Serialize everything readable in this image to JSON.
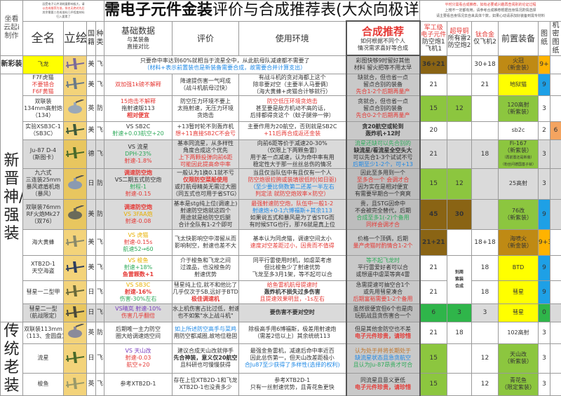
{
  "header": {
    "author": [
      "坐看",
      "云起i",
      "制作"
    ],
    "left_note": [
      "因受电子元件消耗量影响极大，请",
      "以合成推荐为准，排名无绝对先后",
      "其余需要二合成准料几乎程度材料",
      "归入要素了"
    ],
    "title_bold": "需电子元件金装",
    "title_rest": "评价与合成推荐表(大众向极详细版)",
    "right_note": [
      "平时只需看合成推荐，如有必要或兴趣再查阅别的论证过程",
      "上榜不一定都有用，请参考合成推荐根据自身情况酌情选择",
      "请主要看自身情况去自来具体个数，如果心动请添加好装备到需专材料"
    ],
    "cols": {
      "name": "全名",
      "image": "立绘",
      "nation": [
        "国",
        "籍"
      ],
      "type": [
        "种",
        "类"
      ],
      "basic": [
        "基础数据",
        "与某装备",
        "直接对比"
      ],
      "eval": "评价",
      "usage": "使用环境",
      "rec": [
        "合成推荐",
        "如何根据不同个人",
        "情况需求喜好等合成"
      ],
      "mil": [
        "军工级",
        "电子元件",
        "防空炮1",
        "飞机1"
      ],
      "sup": [
        "超导铜",
        "所有雷2",
        "防空炮2"
      ],
      "ti": [
        "钛合金",
        "仅飞机2"
      ],
      "pre": "前置装备",
      "bp": [
        "图",
        "纸"
      ],
      "secret": [
        "机",
        "密",
        "图",
        "纸"
      ]
    }
  },
  "sections": [
    {
      "label": "新彩装",
      "rows": 1
    },
    {
      "label": "新晋神/强装",
      "rows": 10
    },
    {
      "label": "传统老装",
      "rows": 3
    }
  ],
  "colors": {
    "red": "#e53935",
    "blue": "#1e88e5",
    "green": "#2eaa5a",
    "yellow_text": "#e8b000",
    "purple": "#7b3fbf",
    "brown": "#8a6414",
    "gold": "#bf8a14",
    "lime": "#8cc63f",
    "dark_green": "#2fb54a",
    "yellow": "#ffff00",
    "bp_blue": "#1ea0e6",
    "bp_orange": "#ffb300",
    "secret_orange": "#f4a460"
  },
  "rows": [
    {
      "name": [
        "飞龙"
      ],
      "name_bg": "#ffff00",
      "nation": "美",
      "type": "飞",
      "plane": "#7a6a9a",
      "span": [
        "只要命中率达到60%就相当于流星全中，从此航母队减速都不需要了",
        {
          "t": "（材料+表示前置装也是新装备需要合成，故需要合并计算支出）",
          "c": "#1e88e5"
        }
      ],
      "rec": [
        "彩图快够9时留好其他",
        "材料 留火把等不用太早"
      ],
      "mil": "36+21",
      "mil_bg": "#8a6414",
      "sup": "",
      "ti": "30+18",
      "pre": [
        "火冠",
        "（新金装）"
      ],
      "pre_bg": "#bf8a14",
      "bp": "9+",
      "bp_bg": "#ffb300",
      "secret": ""
    },
    {
      "name": [
        "F7F虎猫",
        {
          "t": "不要错合",
          "c": "#e53935"
        },
        {
          "t": "F6F黄猫",
          "c": "#e53935"
        }
      ],
      "nation": "美",
      "type": "飞",
      "plane": "#6a7a88",
      "basic": [
        {
          "t": "双加强1k磅不解释",
          "c": "#e53935"
        }
      ],
      "eval": [
        "降速提伤害一气呵成",
        "（战斗机航母过快）"
      ],
      "usage": [
        "有战斗机的贪对海都上这个",
        "除非要对空（主要半人马要俩）",
        "（海大黄蜂+虎猫合计够就行）"
      ],
      "rec": [
        "缺就合，但也省一点",
        "留点合别的装备",
        {
          "t": "先合1-2个后期再量产",
          "c": "#e53935"
        }
      ],
      "mil": "21",
      "sup": "",
      "ti": "21",
      "pre": [
        "地狱猫"
      ],
      "pre_bg": "#ffff00",
      "bp": "9",
      "bp_bg": "#1ea0e6",
      "secret": ""
    },
    {
      "name": [
        "双联装",
        "134mm高射炮",
        "（134）"
      ],
      "nation": "英",
      "type": "防",
      "plane": "#9aa8b8",
      "gun": true,
      "basic": [
        {
          "t": "15炮击不解释",
          "c": "#e53935"
        },
        "拖射速版113",
        {
          "t": "相对便宜",
          "c": "#e53935",
          "b": true
        }
      ],
      "eval": [
        "防空压力环境不要上",
        "太拖射速，无压力环境",
        "贪炮击"
      ],
      "usage": [
        {
          "t": "防空低压环境贪炮击",
          "c": "#e53935"
        },
        "甚至要是敌方机动不高的话，",
        "后排都得贪这个（蚊子腿停一停）"
      ],
      "rec": [
        "贪就合，但也省一点",
        "留点合别的装备",
        {
          "t": "先合0-2个后期再量产",
          "c": "#e53935"
        }
      ],
      "mil": "15",
      "mil_bg": "#8cc63f",
      "sup": "12",
      "sup_bg": "#8cc63f",
      "ti": "",
      "pre": [
        "120高射",
        "（新紫装）"
      ],
      "pre_bg": "#8cc63f",
      "bp": "3",
      "secret": ""
    },
    {
      "name": [
        "实验XSB3C-1",
        "（SB3C）"
      ],
      "nation": "美",
      "type": "飞",
      "plane": "#3e5a3a",
      "basic": [
        "VS SB2C",
        {
          "t": "射速+0.03航空+20",
          "c": "#2eaa5a"
        }
      ],
      "eval": [
        "+13暂时轮不到轰炸机",
        {
          "t": "想+11直接SB2C不会亏",
          "c": "#e53935"
        }
      ],
      "usage": [
        {
          "t": "主要作用为20航空，否则就是SB2C",
          "c": "#333"
        },
        {
          "t": "+11后再合成返还金装",
          "c": "#e53935"
        }
      ],
      "rec": [
        {
          "t": "贪20航空或轮到",
          "b": true
        },
        {
          "t": "轰炸机+12时",
          "b": true
        }
      ],
      "mil": "20",
      "sup": "",
      "ti": "",
      "pre": [
        "sb2c"
      ],
      "bp": "2",
      "secret": "6",
      "secret_bg": "#f4a460"
    },
    {
      "grey": true,
      "name": [
        "Ju-87 D-4",
        "（斯图卡）"
      ],
      "nation": "德",
      "type": "飞",
      "plane": "#4a6a2a",
      "basic": [
        "VS 流星",
        {
          "t": "DPH-23%",
          "c": "#2eaa5a"
        },
        {
          "t": "射速-1.8%",
          "c": "#e53935"
        }
      ],
      "eval": [
        "基本同流星，从多样性",
        "角度合成这个优先",
        {
          "t": "上下两颗投弹向前6距",
          "c": "#e53935"
        },
        {
          "t": "可能因此提高命中率",
          "c": "#e53935"
        }
      ],
      "usage": [
        "向前6距等价于减速20-30%",
        "（仅限上下两颗鱼雷）",
        "用于差一点减速，认为命中率有用",
        "稳定性大于那一丝丝总伤的情况"
      ],
      "rec": [
        {
          "t": "流星还缺可以先合别的",
          "c": "#2eaa5a"
        },
        {
          "t": "缺流星/看流星全空头大",
          "b": true
        },
        "可以先合1-3个试试不亏",
        {
          "t": "后期至少1-2个，可+13",
          "c": "#1e88e5"
        }
      ],
      "mil": "21",
      "sup": "",
      "ti": "18",
      "pre": [
        "Fi-167",
        "（新紫装）",
        "（再前置还是新装）",
        "（粉丝问德国基子就）"
      ],
      "pre_bg": "#8cc63f",
      "bp": "3",
      "secret": ""
    },
    {
      "grey": true,
      "name": [
        "九六式",
        "三连装25mm",
        "暴风遮盾机炮",
        "（暴风）"
      ],
      "nation": "日",
      "type": "防",
      "plane": "#8a9ab0",
      "gun": true,
      "basic": [
        {
          "t": "调速防空炮",
          "c": "#e53935",
          "b": true
        },
        "VS二期五式防空炮",
        {
          "t": "射程-1",
          "c": "#2eaa5a"
        },
        {
          "t": "射速-0.15",
          "c": "#e53935"
        }
      ],
      "eval": [
        "一般认为1换0.1就不亏",
        {
          "t": "仅限防空菜船使用",
          "c": "#e53935",
          "b": true
        },
        "或打航母精英无需过大圈",
        "（同五式也可用于省STG）"
      ],
      "usage": [
        "当且仅当队伍中有且仅有一个人",
        {
          "t": "防空炮很拉胯或装填很低时(如日驱)",
          "c": "#e53935"
        },
        {
          "t": "（至少要比倒数第二还差一半左右",
          "c": "#1e88e5"
        },
        {
          "t": "判定法 就防空炮效率×防空）",
          "c": "#e53935"
        }
      ],
      "rec": [
        "因此至多用到一个",
        {
          "t": "至多合一个 会调才合",
          "c": "#e53935"
        },
        "因为实在是相对便宜",
        "有需要早期合一个爽爽"
      ],
      "mil": "15",
      "mil_bg": "#8cc63f",
      "sup": "12",
      "sup_bg": "#8cc63f",
      "ti": "",
      "pre": [
        "25高射"
      ],
      "bp": "3",
      "secret": ""
    },
    {
      "grey": true,
      "name": [
        "双联装76mm",
        "RF火炮Mk27",
        "（双76）"
      ],
      "nation": "美",
      "type": "防",
      "plane": "#6a6a5a",
      "gun": true,
      "basic": [
        {
          "t": "调速防空炮",
          "c": "#e53935",
          "b": true
        },
        {
          "t": "VS 3FAA炮",
          "c": "#e8b000"
        },
        {
          "t": "射速-0.08",
          "c": "#e53935"
        }
      ],
      "eval": [
        "基本是stg纯上位(调速上)",
        "射速防空炮就这四个",
        "用途就是给防空后腿",
        "合计全队有1-2个即可"
      ],
      "usage": [
        {
          "t": "最强射速防空炮，队伍中一般1-2",
          "c": "#e53935"
        },
        {
          "t": "射速炮+0-1六博福斯+其余113",
          "c": "#1e88e5"
        },
        "如果说五式和暴风是为了省STG而",
        "有时候STG也行，那76就是真上位"
      ],
      "rec": [
        {
          "t": "贵，且STG因命中",
          "c": "#333"
        },
        "不会被完全替代，后期",
        {
          "t": "合成至多1(-2)个备用",
          "c": "#2eaa5a"
        },
        {
          "t": "同样会调才合",
          "c": "#e53935"
        }
      ],
      "mil": "45",
      "mil_bg": "#8a6414",
      "sup": "30",
      "sup_bg": "#8a6414",
      "ti": "",
      "pre": [
        "76改",
        "（新紫装）"
      ],
      "pre_bg": "#8cc63f",
      "bp": "9",
      "bp_bg": "#1ea0e6",
      "secret": ""
    },
    {
      "name": [
        "海大黄蜂"
      ],
      "nation": "美",
      "type": "飞",
      "plane": "#8a8a6a",
      "basic": [
        {
          "t": "VS 虎猫",
          "c": "#e8b000"
        },
        {
          "t": "射速-0.15s",
          "c": "#e53935"
        },
        {
          "t": "航速52→60",
          "c": "#2eaa5a"
        }
      ],
      "eval": [
        "飞太快影响空中滞留从而",
        "影响制空，射速也差不大"
      ],
      "usage": [
        {
          "t": "基本认为同虎猫，调速空间太小",
          "c": "#333"
        },
        {
          "t": "速度对空差距过小，因贵而不值得",
          "c": "#e53935"
        }
      ],
      "rec": [
        "价格一个顶俩，后期",
        {
          "t": "量产虎猫时酌情合1-2个",
          "c": "#e53935"
        }
      ],
      "mil": "21+21",
      "mil_bg": "#8a6414",
      "sup": "",
      "ti": "18+18",
      "pre": [
        "海喷火",
        "（新金装）"
      ],
      "pre_bg": "#bf8a14",
      "bp": "9+3",
      "bp_bg": "#ffb300",
      "secret": ""
    },
    {
      "name": [
        "XTB2D-1",
        "天空海盗"
      ],
      "nation": "美",
      "type": "飞",
      "plane": "#2e3e5e",
      "basic": [
        {
          "t": "VS 梭鱼",
          "c": "#e8b000"
        },
        {
          "t": "射速+18%",
          "c": "#2eaa5a"
        },
        {
          "t": "鱼雷颗数+1",
          "c": "#e53935",
          "b": true
        }
      ],
      "eval": [
        "介于梭鱼和飞龙之间",
        {
          "t": "过渡品，也没梭鱼的",
          "c": "#333"
        },
        "射速优势"
      ],
      "usage": [
        "同平行雷使用时机，如虐菜考虑",
        "但比梭鱼少了射速优势",
        "飞龙至多3月1架，等不起可以合"
      ],
      "rec": [
        {
          "t": "等不起飞龙时",
          "c": "#2eaa5a"
        },
        "平行雷爱好者可以合",
        "或想遥中虐菜等爽4雷"
      ],
      "mil": "21",
      "sup_merged": [
        "别周",
        "紫装",
        "合成"
      ],
      "ti": "18",
      "pre": [
        "BTD"
      ],
      "pre_bg": "#ffff00",
      "bp": "9",
      "bp_bg": "#1ea0e6",
      "secret": ""
    },
    {
      "name": [
        "彗星一二型甲"
      ],
      "nation": "日",
      "type": "飞",
      "plane": "#6a6a3a",
      "basic": [
        {
          "t": "VS SB3C",
          "c": "#e8b000"
        },
        {
          "t": "射速-16%",
          "c": "#e53935",
          "b": true
        },
        {
          "t": "伤害-30%左右",
          "c": "#2eaa5a"
        }
      ],
      "eval": [
        "彗星纯上位,就不和他比了",
        "几乎仅次于SB,远好于BTD",
        {
          "t": "极佳调速机",
          "c": "#e53935",
          "b": true
        }
      ],
      "usage": [
        {
          "t": "给鱼雷机航母提速时",
          "c": "#e53935"
        },
        {
          "t": "轰炸机不损失过多伤害",
          "b": true
        },
        {
          "t": "且提速效果明显，-1s左右",
          "c": "#e53935"
        }
      ],
      "rec": [
        "急需提速可抽空合1个",
        "或先用彗星凑合",
        {
          "t": "后期富裕需要1-2个备用",
          "c": "#e53935"
        }
      ],
      "mil": "21",
      "ti": "18",
      "pre": [
        "彗星"
      ],
      "pre_bg": "#ffff00",
      "bp": "9",
      "bp_bg": "#1ea0e6",
      "secret": ""
    },
    {
      "grey": true,
      "name": [
        "彗星二一型",
        "（航战限定）"
      ],
      "nation": "日",
      "type": "飞",
      "plane": "#4a4a3a",
      "basic": [
        {
          "t": "VS晴岚 射速-10%",
          "c": "#7b3fbf"
        },
        {
          "t": "伤害几乎翻倍",
          "c": "#e53935"
        }
      ],
      "eval": [
        "水上机伤害占比过低，射速",
        "也不如紫\"水上战斗机\""
      ],
      "usage": [
        {
          "t": "要伤害不要对空时",
          "b": true
        }
      ],
      "rec": [
        "虽然很便宜但6个也是肉",
        "玩航战且贪伤害合一个"
      ],
      "mil": "6",
      "mil_bg": "#2fb54a",
      "sup": "3",
      "sup_bg": "#2fb54a",
      "ti": "3",
      "pre": [
        "彗星"
      ],
      "pre_bg": "#ffff00",
      "bp": "0",
      "bp_bg": "#2fb54a",
      "secret": ""
    },
    {
      "name": [
        "双联装113mm",
        "（113、金圆盘）"
      ],
      "nation": "英",
      "type": "防",
      "plane": "#8a8a9a",
      "gun": true,
      "basic": [
        "后期唯一主力防空",
        "圈大给调速炮空间"
      ],
      "eval": [
        {
          "t": "如上所述防空高手与菜鸡",
          "c": "#1e88e5"
        },
        "用防空都减圈,故地位稳固"
      ],
      "usage": [
        "除极高手用6博福斯，极差用射速炮",
        "（需差2倍以上）其余统统113"
      ],
      "rec": [
        "但是其他金防空也不差",
        {
          "t": "电子元件珍贵，请珍惜",
          "c": "#e53935",
          "b": true
        }
      ],
      "mil": "21",
      "sup": "18",
      "ti": "",
      "pre": [
        "102高射"
      ],
      "bp": "3",
      "secret": ""
    },
    {
      "name": [
        "流星"
      ],
      "nation": "日",
      "type": "飞",
      "plane": "#4a6a2a",
      "basic": [
        {
          "t": "VS 天山改",
          "c": "#7b3fbf"
        },
        {
          "t": "射速-0.03",
          "c": "#e53935"
        },
        {
          "t": "航空+20",
          "c": "#e53935"
        }
      ],
      "eval": [
        "建议合成天山改就停手",
        {
          "t": "先合神装，意义仅20航空",
          "b": true
        },
        "且科研也可慢慢获得"
      ],
      "usage": [
        "最强金鱼雷机，减速后命中率近百",
        "因此总伤第一，但天山改差距极小",
        {
          "t": "合Ju87至少获得了多样性(选择的权利)",
          "c": "#1e88e5"
        }
      ],
      "rec": [
        {
          "t": "认为处于并将长期处于",
          "c": "#c0752a"
        },
        {
          "t": "缺流星状态且急贪航空",
          "c": "#1e88e5"
        },
        {
          "t": "且认为Ju-87昂贵才可合",
          "c": "#2eaa5a"
        }
      ],
      "mil": "15",
      "mil_bg": "#8cc63f",
      "ti": "12",
      "pre": [
        "天山改",
        "（新紫装）"
      ],
      "pre_bg": "#8cc63f",
      "bp": "3",
      "secret": ""
    },
    {
      "name": [
        "梭鱼"
      ],
      "nation": "英",
      "type": "飞",
      "plane": "#9a9a6a",
      "basic": [
        "参考XTB2D-1"
      ],
      "eval": [
        "存在上位XTB2D-1和飞龙",
        "XTB2D-1也没贵多少"
      ],
      "usage": [
        "参考XTB2D-1",
        "只有一丝射速优势，且青花鱼更快"
      ],
      "rec": [
        "同流星且意义更低",
        {
          "t": "电子元件珍贵，请珍惜",
          "c": "#e53935",
          "b": true
        }
      ],
      "mil": "15",
      "mil_bg": "#8cc63f",
      "ti": "12",
      "pre": [
        "青花鱼",
        "（限定紫装）"
      ],
      "pre_bg": "#8cc63f",
      "bp": "3",
      "secret": ""
    }
  ]
}
